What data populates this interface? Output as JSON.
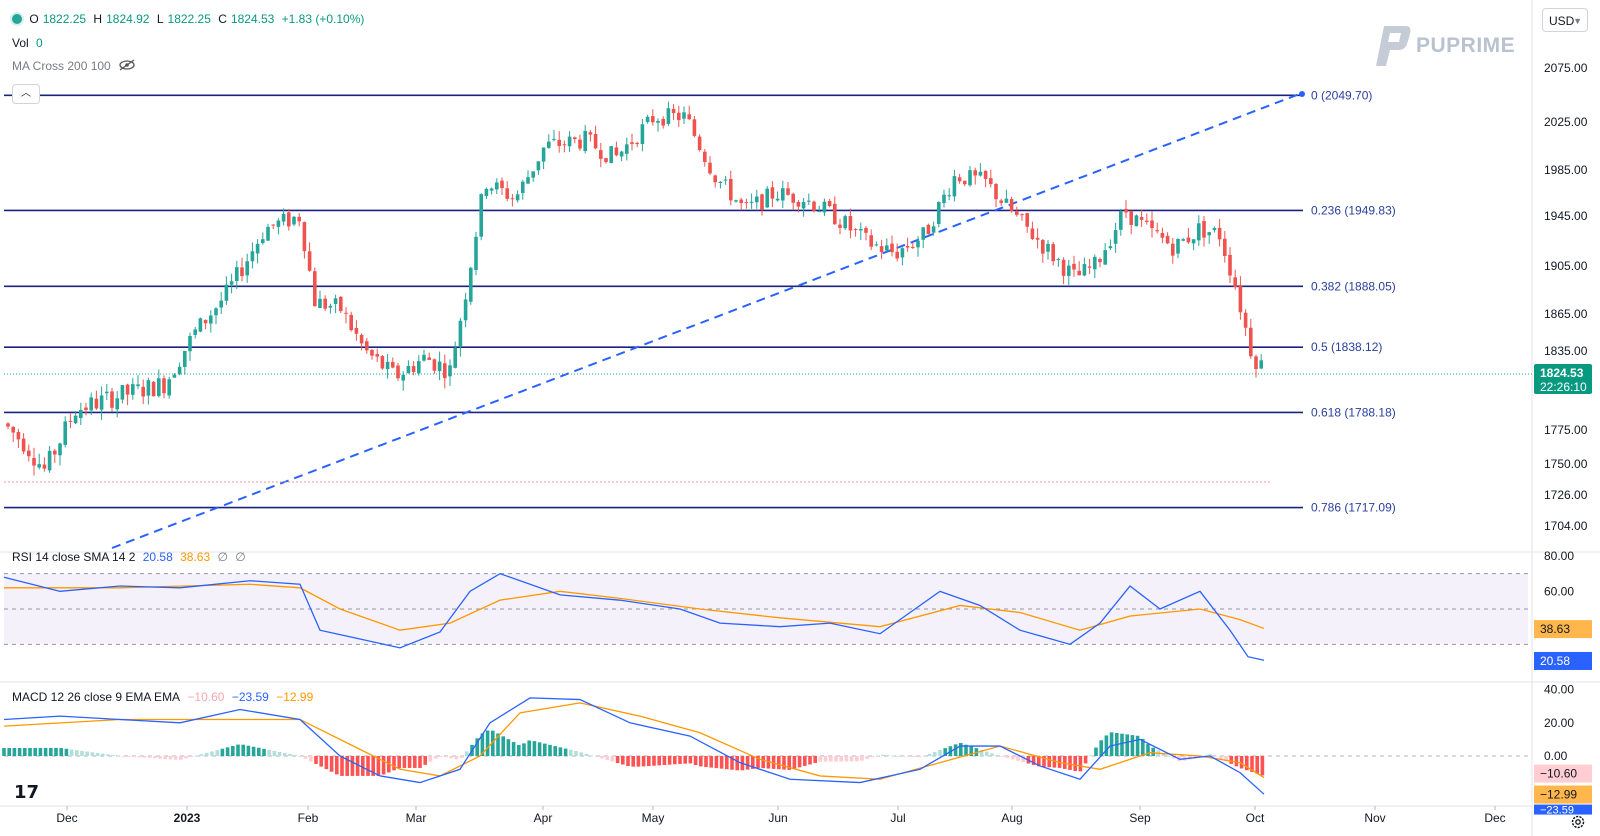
{
  "symbol_legend": {
    "open_label": "O",
    "open": "1822.25",
    "high_label": "H",
    "high": "1824.92",
    "low_label": "L",
    "low": "1822.25",
    "close_label": "C",
    "close": "1824.53",
    "change": "+1.83 (+0.10%)"
  },
  "vol": {
    "label": "Vol",
    "value": "0"
  },
  "ma_cross": {
    "label": "MA Cross 200 100",
    "icon": "eye-off-icon"
  },
  "currency": {
    "value": "USD"
  },
  "brand": {
    "name": "PUPRIME"
  },
  "price_axis": {
    "ticks": [
      "2075.00",
      "2025.00",
      "1985.00",
      "1945.00",
      "1905.00",
      "1865.00",
      "1835.00",
      "1805.00",
      "1775.00",
      "1750.00",
      "1726.00",
      "1704.00"
    ],
    "last_price": "1824.53",
    "countdown": "22:26:10"
  },
  "fib_levels": [
    {
      "label": "0 (2049.70)",
      "value": 2049.7
    },
    {
      "label": "0.236 (1949.83)",
      "value": 1949.83
    },
    {
      "label": "0.382 (1888.05)",
      "value": 1888.05
    },
    {
      "label": "0.5 (1838.12)",
      "value": 1838.12
    },
    {
      "label": "0.618 (1788.18)",
      "value": 1788.18
    },
    {
      "label": "0.786 (1717.09)",
      "value": 1717.09
    }
  ],
  "time_axis": {
    "labels": [
      "Dec",
      "2023",
      "Feb",
      "Mar",
      "Apr",
      "May",
      "Jun",
      "Jul",
      "Aug",
      "Sep",
      "Oct",
      "Nov",
      "Dec"
    ]
  },
  "rsi": {
    "legend_label": "RSI 14 close SMA 14 2",
    "rsi_value": "20.58",
    "sma_value": "38.63",
    "extra1": "∅",
    "extra2": "∅",
    "ticks": [
      "80.00",
      "60.00"
    ],
    "tag_sma": "38.63",
    "tag_rsi": "20.58"
  },
  "macd": {
    "legend_label": "MACD 12 26 close 9 EMA EMA",
    "hist_value": "−10.60",
    "macd_value": "−23.59",
    "signal_value": "−12.99",
    "ticks": [
      "40.00",
      "20.00",
      "0.00"
    ],
    "tag_hist": "−10.60",
    "tag_signal": "−12.99",
    "tag_macd": "−23.59"
  },
  "colors": {
    "up": "#26a69a",
    "down": "#ef5350",
    "fib": "#1a237e",
    "trend": "#2962ff",
    "rsi": "#2962ff",
    "rsi_sma": "#ff9800",
    "macd": "#2962ff",
    "signal": "#ff9800"
  },
  "tv_logo": "17",
  "chart_data": {
    "type": "candlestick",
    "series_hint": "daily candles, Nov 2022 – Oct 2023",
    "anchor_points": [
      [
        "Nov 2022",
        1780
      ],
      [
        "Dec 2022",
        1760
      ],
      [
        "Jan 2023",
        1840
      ],
      [
        "late Jan",
        1945
      ],
      [
        "Feb",
        1870
      ],
      [
        "late Feb",
        1815
      ],
      [
        "Mar",
        1830
      ],
      [
        "late Mar",
        1975
      ],
      [
        "Apr",
        2010
      ],
      [
        "early May",
        2050
      ],
      [
        "mid May",
        2015
      ],
      [
        "Jun",
        1955
      ],
      [
        "late Jun",
        1915
      ],
      [
        "Jul",
        1930
      ],
      [
        "mid Jul",
        1980
      ],
      [
        "Aug",
        1945
      ],
      [
        "mid Aug",
        1890
      ],
      [
        "early Sep",
        1945
      ],
      [
        "mid Sep",
        1920
      ],
      [
        "late Sep",
        1925
      ],
      [
        "Oct",
        1824.53
      ]
    ]
  }
}
